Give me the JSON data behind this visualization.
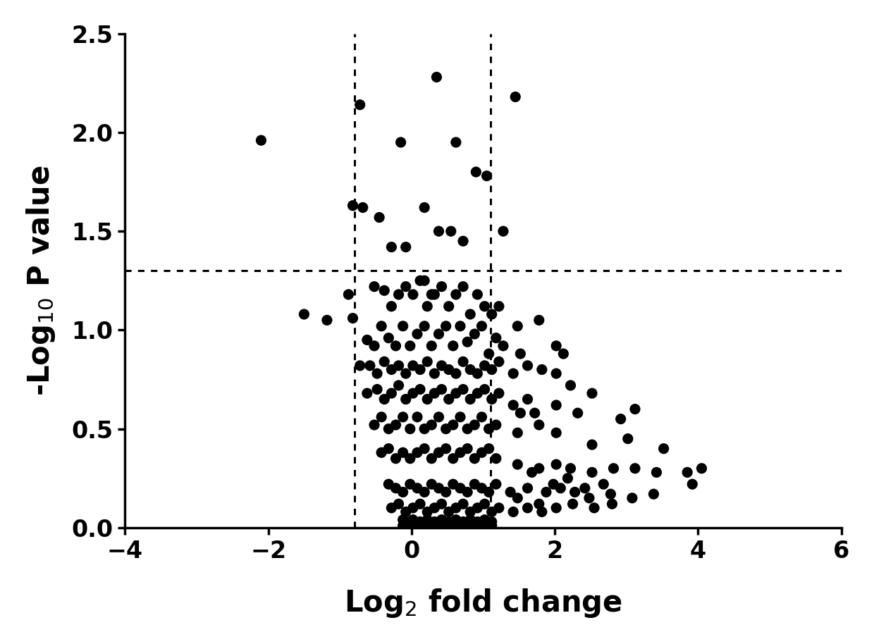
{
  "title": "",
  "xlabel": "Log$_2$ fold change",
  "ylabel": "-Log$_{10}$ P value",
  "xlim": [
    -4,
    6
  ],
  "ylim": [
    0.0,
    2.5
  ],
  "xticks": [
    -4,
    -2,
    0,
    2,
    4,
    6
  ],
  "yticks": [
    0.0,
    0.5,
    1.0,
    1.5,
    2.0,
    2.5
  ],
  "vline1": -0.8,
  "vline2": 1.1,
  "hline": 1.301,
  "dot_color": "#000000",
  "dot_size": 120,
  "background_color": "#ffffff",
  "points": [
    [
      -2.1,
      1.96
    ],
    [
      -0.72,
      2.14
    ],
    [
      0.35,
      2.28
    ],
    [
      1.45,
      2.18
    ],
    [
      -0.15,
      1.95
    ],
    [
      0.62,
      1.95
    ],
    [
      0.9,
      1.8
    ],
    [
      1.05,
      1.78
    ],
    [
      -0.82,
      1.63
    ],
    [
      -0.68,
      1.62
    ],
    [
      -0.45,
      1.57
    ],
    [
      0.18,
      1.62
    ],
    [
      -0.28,
      1.42
    ],
    [
      -0.08,
      1.42
    ],
    [
      0.38,
      1.5
    ],
    [
      0.55,
      1.5
    ],
    [
      0.72,
      1.45
    ],
    [
      1.28,
      1.5
    ],
    [
      -1.5,
      1.08
    ],
    [
      -1.18,
      1.05
    ],
    [
      -0.88,
      1.18
    ],
    [
      -0.82,
      1.06
    ],
    [
      -0.52,
      1.22
    ],
    [
      -0.38,
      1.2
    ],
    [
      -0.28,
      1.12
    ],
    [
      -0.18,
      1.18
    ],
    [
      -0.08,
      1.22
    ],
    [
      0.02,
      1.18
    ],
    [
      0.12,
      1.25
    ],
    [
      0.22,
      1.12
    ],
    [
      0.32,
      1.18
    ],
    [
      0.42,
      1.22
    ],
    [
      0.52,
      1.12
    ],
    [
      0.62,
      1.18
    ],
    [
      0.72,
      1.22
    ],
    [
      0.82,
      1.08
    ],
    [
      0.92,
      1.18
    ],
    [
      1.02,
      1.12
    ],
    [
      1.12,
      1.08
    ],
    [
      1.22,
      1.12
    ],
    [
      1.48,
      1.02
    ],
    [
      1.78,
      1.05
    ],
    [
      0.18,
      1.25
    ],
    [
      0.28,
      1.18
    ],
    [
      -0.62,
      0.95
    ],
    [
      -0.52,
      0.92
    ],
    [
      -0.42,
      1.02
    ],
    [
      -0.32,
      0.96
    ],
    [
      -0.22,
      0.92
    ],
    [
      -0.12,
      1.02
    ],
    [
      -0.02,
      0.92
    ],
    [
      0.08,
      0.98
    ],
    [
      0.18,
      1.02
    ],
    [
      0.28,
      0.92
    ],
    [
      0.38,
      0.98
    ],
    [
      0.48,
      1.02
    ],
    [
      0.58,
      0.92
    ],
    [
      0.68,
      1.02
    ],
    [
      0.78,
      0.94
    ],
    [
      0.88,
      0.98
    ],
    [
      0.98,
      1.02
    ],
    [
      1.08,
      0.88
    ],
    [
      1.18,
      0.96
    ],
    [
      1.28,
      0.92
    ],
    [
      1.52,
      0.88
    ],
    [
      2.02,
      0.92
    ],
    [
      2.12,
      0.88
    ],
    [
      -0.72,
      0.82
    ],
    [
      -0.58,
      0.82
    ],
    [
      -0.48,
      0.78
    ],
    [
      -0.38,
      0.84
    ],
    [
      -0.28,
      0.8
    ],
    [
      -0.18,
      0.82
    ],
    [
      -0.08,
      0.78
    ],
    [
      0.02,
      0.82
    ],
    [
      0.12,
      0.8
    ],
    [
      0.22,
      0.84
    ],
    [
      0.32,
      0.78
    ],
    [
      0.42,
      0.82
    ],
    [
      0.52,
      0.8
    ],
    [
      0.62,
      0.78
    ],
    [
      0.72,
      0.84
    ],
    [
      0.82,
      0.8
    ],
    [
      0.92,
      0.78
    ],
    [
      1.02,
      0.82
    ],
    [
      1.12,
      0.8
    ],
    [
      1.22,
      0.84
    ],
    [
      1.42,
      0.78
    ],
    [
      1.62,
      0.82
    ],
    [
      1.82,
      0.8
    ],
    [
      2.02,
      0.78
    ],
    [
      2.22,
      0.72
    ],
    [
      2.52,
      0.68
    ],
    [
      -0.62,
      0.68
    ],
    [
      -0.48,
      0.7
    ],
    [
      -0.38,
      0.65
    ],
    [
      -0.28,
      0.68
    ],
    [
      -0.18,
      0.72
    ],
    [
      -0.08,
      0.65
    ],
    [
      0.02,
      0.68
    ],
    [
      0.12,
      0.7
    ],
    [
      0.22,
      0.65
    ],
    [
      0.32,
      0.68
    ],
    [
      0.42,
      0.7
    ],
    [
      0.52,
      0.65
    ],
    [
      0.62,
      0.68
    ],
    [
      0.72,
      0.7
    ],
    [
      0.82,
      0.65
    ],
    [
      0.92,
      0.68
    ],
    [
      1.02,
      0.7
    ],
    [
      1.12,
      0.65
    ],
    [
      1.22,
      0.68
    ],
    [
      1.42,
      0.62
    ],
    [
      1.72,
      0.58
    ],
    [
      2.02,
      0.62
    ],
    [
      2.32,
      0.58
    ],
    [
      1.62,
      0.65
    ],
    [
      1.52,
      0.58
    ],
    [
      -0.52,
      0.52
    ],
    [
      -0.42,
      0.56
    ],
    [
      -0.32,
      0.5
    ],
    [
      -0.22,
      0.52
    ],
    [
      -0.12,
      0.56
    ],
    [
      -0.02,
      0.5
    ],
    [
      0.08,
      0.56
    ],
    [
      0.18,
      0.5
    ],
    [
      0.28,
      0.52
    ],
    [
      0.38,
      0.56
    ],
    [
      0.48,
      0.5
    ],
    [
      0.58,
      0.52
    ],
    [
      0.68,
      0.56
    ],
    [
      0.78,
      0.5
    ],
    [
      0.88,
      0.52
    ],
    [
      0.98,
      0.56
    ],
    [
      1.08,
      0.5
    ],
    [
      1.18,
      0.52
    ],
    [
      1.48,
      0.48
    ],
    [
      1.78,
      0.52
    ],
    [
      2.02,
      0.48
    ],
    [
      2.52,
      0.42
    ],
    [
      3.02,
      0.45
    ],
    [
      3.52,
      0.4
    ],
    [
      2.92,
      0.55
    ],
    [
      3.12,
      0.6
    ],
    [
      3.85,
      0.28
    ],
    [
      3.92,
      0.22
    ],
    [
      4.05,
      0.3
    ],
    [
      -0.42,
      0.38
    ],
    [
      -0.32,
      0.4
    ],
    [
      -0.22,
      0.35
    ],
    [
      -0.12,
      0.38
    ],
    [
      -0.02,
      0.35
    ],
    [
      0.08,
      0.38
    ],
    [
      0.18,
      0.4
    ],
    [
      0.28,
      0.35
    ],
    [
      0.38,
      0.38
    ],
    [
      0.48,
      0.4
    ],
    [
      0.58,
      0.35
    ],
    [
      0.68,
      0.38
    ],
    [
      0.78,
      0.4
    ],
    [
      0.88,
      0.35
    ],
    [
      0.98,
      0.38
    ],
    [
      1.08,
      0.4
    ],
    [
      1.18,
      0.35
    ],
    [
      1.48,
      0.32
    ],
    [
      1.78,
      0.3
    ],
    [
      2.02,
      0.32
    ],
    [
      2.22,
      0.3
    ],
    [
      2.52,
      0.28
    ],
    [
      2.82,
      0.3
    ],
    [
      3.12,
      0.3
    ],
    [
      3.42,
      0.28
    ],
    [
      1.68,
      0.28
    ],
    [
      1.98,
      0.22
    ],
    [
      2.18,
      0.25
    ],
    [
      2.42,
      0.2
    ],
    [
      2.68,
      0.22
    ],
    [
      -0.32,
      0.22
    ],
    [
      -0.22,
      0.2
    ],
    [
      -0.12,
      0.18
    ],
    [
      -0.02,
      0.22
    ],
    [
      0.08,
      0.2
    ],
    [
      0.18,
      0.18
    ],
    [
      0.28,
      0.22
    ],
    [
      0.38,
      0.2
    ],
    [
      0.48,
      0.18
    ],
    [
      0.58,
      0.22
    ],
    [
      0.68,
      0.2
    ],
    [
      0.78,
      0.18
    ],
    [
      0.88,
      0.22
    ],
    [
      0.98,
      0.2
    ],
    [
      1.08,
      0.18
    ],
    [
      1.18,
      0.22
    ],
    [
      1.38,
      0.18
    ],
    [
      1.62,
      0.2
    ],
    [
      1.88,
      0.18
    ],
    [
      2.08,
      0.2
    ],
    [
      2.28,
      0.18
    ],
    [
      2.48,
      0.15
    ],
    [
      2.78,
      0.17
    ],
    [
      3.08,
      0.15
    ],
    [
      3.38,
      0.17
    ],
    [
      1.48,
      0.15
    ],
    [
      1.78,
      0.12
    ],
    [
      2.02,
      0.1
    ],
    [
      2.25,
      0.12
    ],
    [
      2.55,
      0.1
    ],
    [
      2.8,
      0.12
    ],
    [
      -0.28,
      0.1
    ],
    [
      -0.18,
      0.12
    ],
    [
      -0.08,
      0.08
    ],
    [
      0.02,
      0.1
    ],
    [
      0.12,
      0.12
    ],
    [
      0.22,
      0.08
    ],
    [
      0.32,
      0.1
    ],
    [
      0.42,
      0.12
    ],
    [
      0.52,
      0.08
    ],
    [
      0.62,
      0.1
    ],
    [
      0.72,
      0.12
    ],
    [
      0.82,
      0.08
    ],
    [
      0.92,
      0.1
    ],
    [
      1.02,
      0.12
    ],
    [
      1.12,
      0.08
    ],
    [
      1.22,
      0.1
    ],
    [
      1.42,
      0.08
    ],
    [
      1.62,
      0.1
    ],
    [
      1.82,
      0.08
    ],
    [
      0.02,
      0.04
    ],
    [
      0.12,
      0.03
    ],
    [
      0.22,
      0.04
    ],
    [
      0.32,
      0.03
    ],
    [
      0.42,
      0.04
    ],
    [
      0.52,
      0.03
    ],
    [
      0.62,
      0.04
    ],
    [
      0.72,
      0.03
    ],
    [
      0.82,
      0.04
    ],
    [
      0.92,
      0.03
    ],
    [
      1.02,
      0.04
    ],
    [
      1.12,
      0.03
    ],
    [
      -0.12,
      0.04
    ],
    [
      -0.02,
      0.03
    ],
    [
      0.02,
      0.01
    ],
    [
      0.12,
      0.01
    ],
    [
      0.22,
      0.01
    ],
    [
      0.32,
      0.01
    ],
    [
      0.42,
      0.01
    ],
    [
      0.52,
      0.01
    ],
    [
      0.62,
      0.01
    ],
    [
      0.72,
      0.01
    ],
    [
      0.82,
      0.01
    ],
    [
      0.92,
      0.01
    ],
    [
      1.02,
      0.01
    ],
    [
      1.12,
      0.01
    ],
    [
      -0.12,
      0.01
    ],
    [
      -0.02,
      0.01
    ]
  ]
}
